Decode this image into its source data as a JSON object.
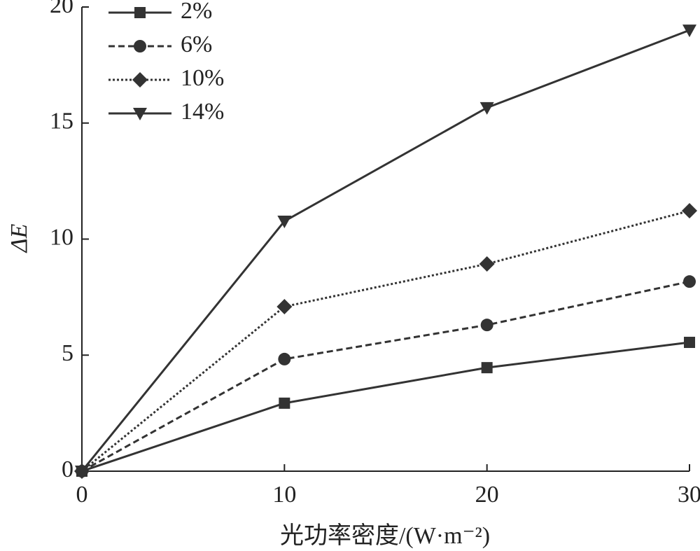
{
  "chart_data": {
    "type": "line",
    "x_label": "光功率密度/(W·m⁻²)",
    "y_label": "ΔE",
    "x": [
      0,
      10,
      20,
      30
    ],
    "xlim": [
      0,
      30
    ],
    "xticks": [
      0,
      10,
      20,
      30
    ],
    "ylim": [
      0,
      20
    ],
    "yticks": [
      0,
      5,
      10,
      15,
      20
    ],
    "legend": "top-left",
    "series": [
      {
        "name": "2%",
        "color": "#333333",
        "linestyle": "solid",
        "marker": "square",
        "values": [
          0,
          2.93,
          4.46,
          5.55
        ]
      },
      {
        "name": "6%",
        "color": "#333333",
        "linestyle": "dashed",
        "marker": "circle",
        "values": [
          0,
          4.83,
          6.3,
          8.17
        ]
      },
      {
        "name": "10%",
        "color": "#333333",
        "linestyle": "dotted",
        "marker": "diamond",
        "values": [
          0,
          7.09,
          8.93,
          11.22
        ]
      },
      {
        "name": "14%",
        "color": "#333333",
        "linestyle": "solid",
        "marker": "triangle-down",
        "values": [
          0,
          10.77,
          15.66,
          19.0
        ]
      }
    ]
  }
}
